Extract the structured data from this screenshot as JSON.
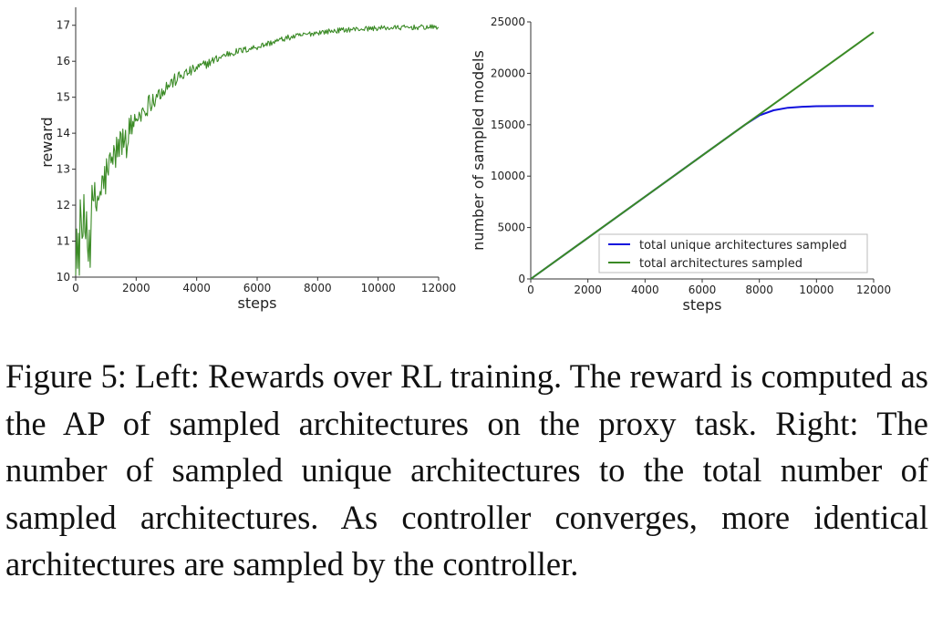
{
  "chart_data": [
    {
      "type": "line",
      "xlabel": "steps",
      "ylabel": "reward",
      "xlim": [
        0,
        12000
      ],
      "ylim": [
        10,
        17.5
      ],
      "x_ticks": [
        0,
        2000,
        4000,
        6000,
        8000,
        10000,
        12000
      ],
      "y_ticks": [
        10,
        11,
        12,
        13,
        14,
        15,
        16,
        17
      ],
      "grid": false,
      "series": [
        {
          "name": "reward",
          "color": "#3a8a25",
          "noisy": true,
          "x": [
            0,
            300,
            700,
            1000,
            1400,
            2000,
            2500,
            3000,
            3500,
            4000,
            4500,
            5000,
            6000,
            7000,
            8000,
            9000,
            10000,
            11000,
            12000
          ],
          "values": [
            11.0,
            11.4,
            12.1,
            12.8,
            13.6,
            14.4,
            14.9,
            15.3,
            15.6,
            15.8,
            16.0,
            16.2,
            16.4,
            16.65,
            16.8,
            16.88,
            16.92,
            16.94,
            16.95
          ]
        }
      ]
    },
    {
      "type": "line",
      "xlabel": "steps",
      "ylabel": "number of sampled models",
      "xlim": [
        0,
        12000
      ],
      "ylim": [
        0,
        25000
      ],
      "x_ticks": [
        0,
        2000,
        4000,
        6000,
        8000,
        10000,
        12000
      ],
      "y_ticks": [
        0,
        5000,
        10000,
        15000,
        20000,
        25000
      ],
      "grid": false,
      "legend_position": "bottom-right",
      "series": [
        {
          "name": "total unique architectures sampled",
          "color": "#1010dd",
          "x": [
            0,
            2000,
            4000,
            6000,
            7000,
            7500,
            8000,
            8500,
            9000,
            9500,
            10000,
            11000,
            12000
          ],
          "values": [
            0,
            4000,
            8000,
            12000,
            14000,
            15000,
            15900,
            16400,
            16650,
            16750,
            16800,
            16820,
            16830
          ]
        },
        {
          "name": "total architectures sampled",
          "color": "#3a8a25",
          "x": [
            0,
            12000
          ],
          "values": [
            0,
            24000
          ]
        }
      ]
    }
  ],
  "caption": "Figure 5: Left: Rewards over RL training. The reward is computed as the AP of sampled architectures on the proxy task. Right: The number of sampled unique architectures to the total number of sampled architectures. As controller converges, more identical architectures are sampled by the controller."
}
